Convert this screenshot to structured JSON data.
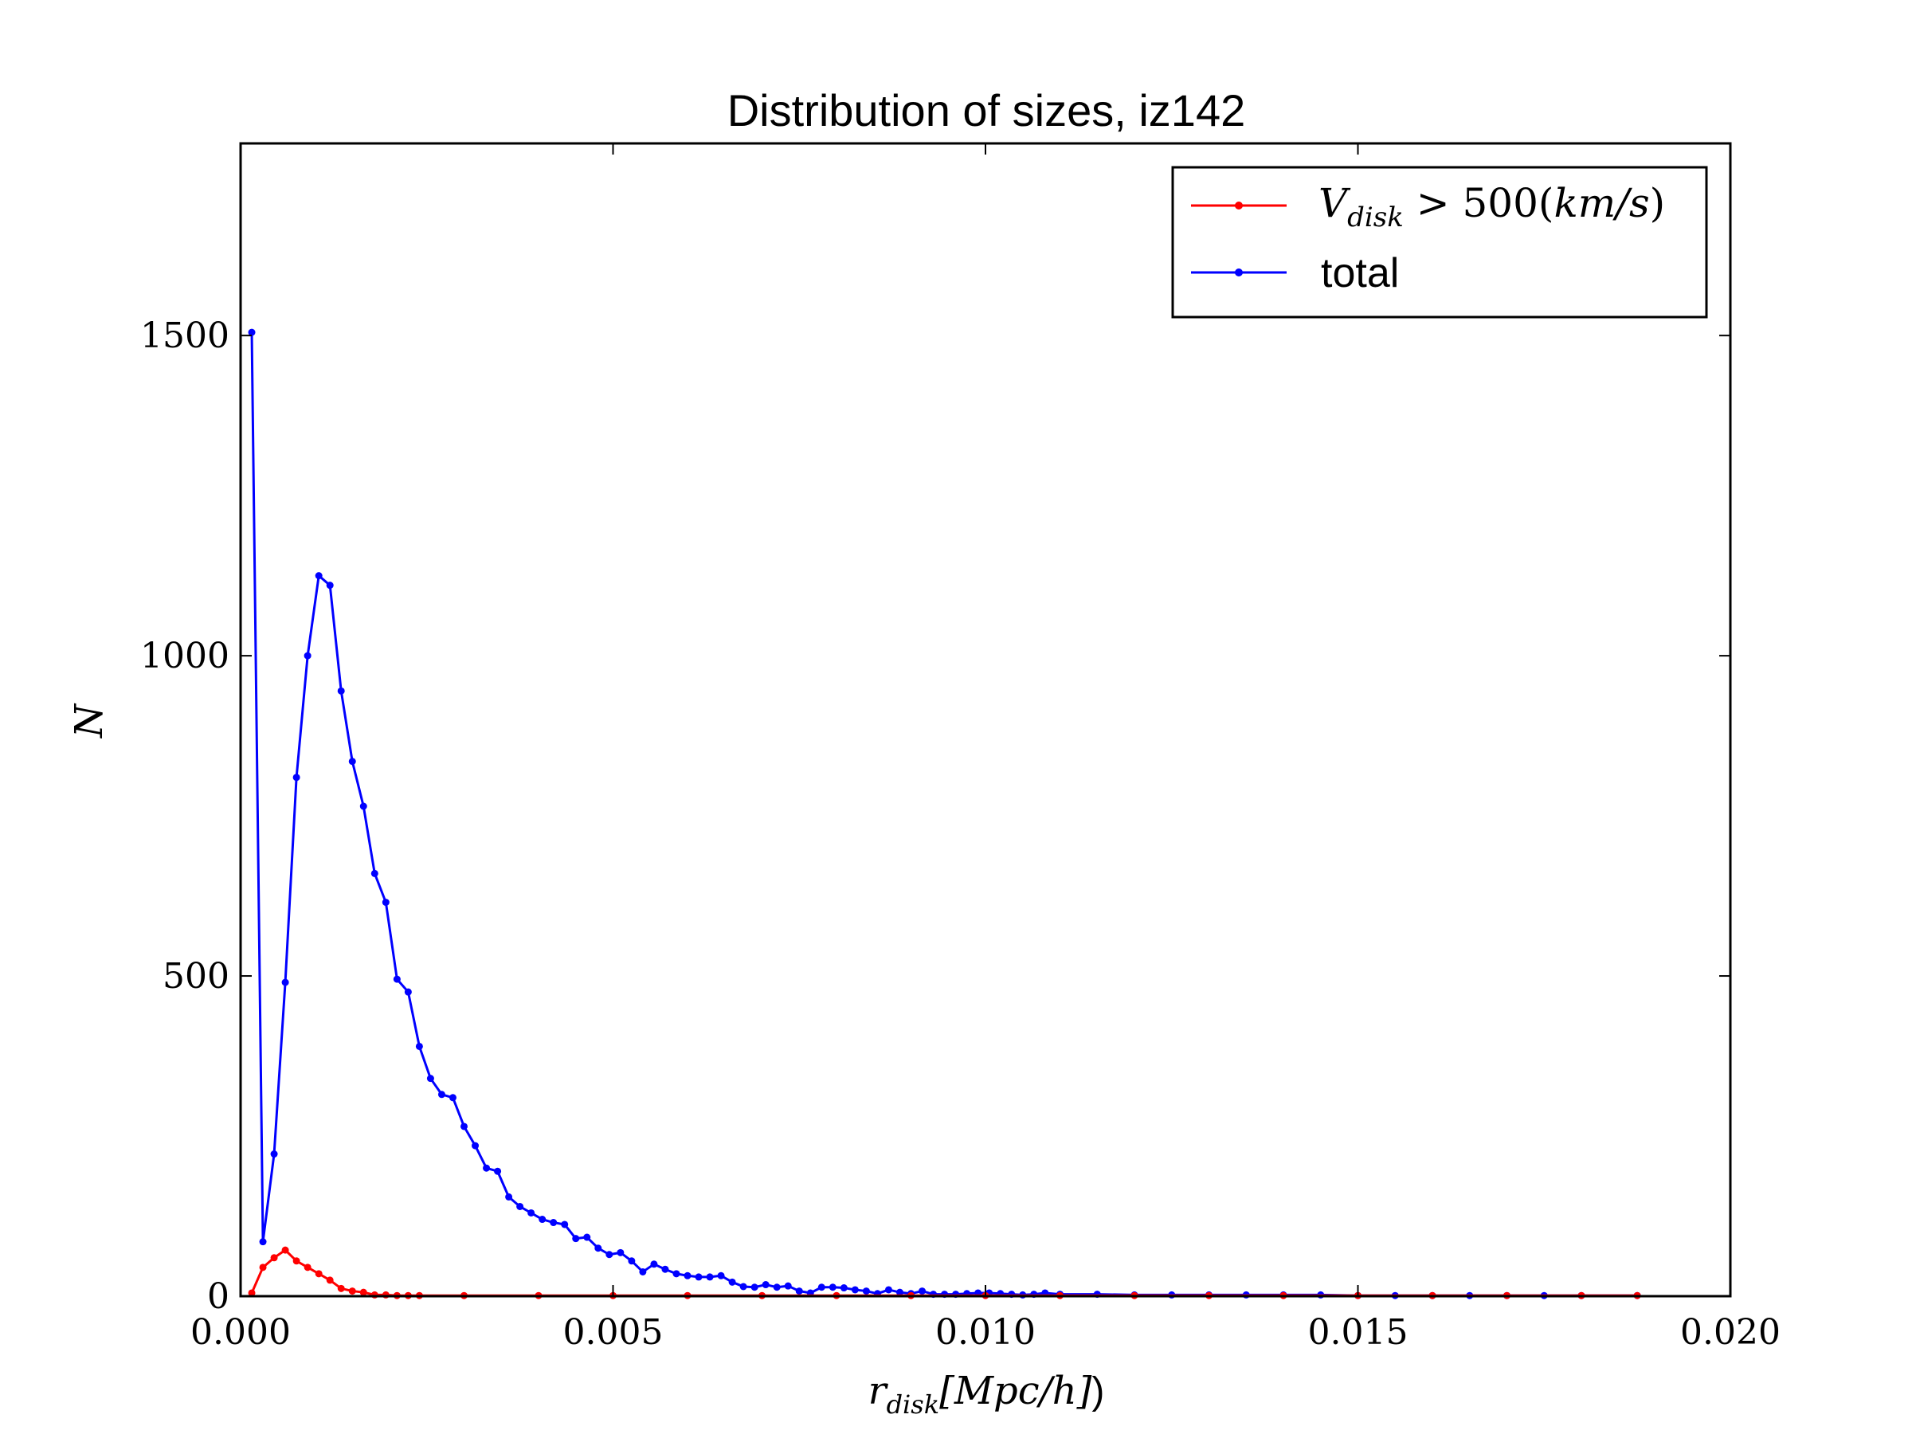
{
  "chart_data": {
    "type": "line",
    "title": "Distribution of sizes, iz142",
    "xlabel": "r_disk[Mpc/h])",
    "ylabel": "N",
    "xlim": [
      0.0,
      0.02
    ],
    "ylim": [
      0,
      1800
    ],
    "xticks": [
      0.0,
      0.005,
      0.01,
      0.015,
      0.02
    ],
    "xtick_labels": [
      "0.000",
      "0.005",
      "0.010",
      "0.015",
      "0.020"
    ],
    "yticks": [
      0,
      500,
      1000,
      1500
    ],
    "ytick_labels": [
      "0",
      "500",
      "1000",
      "1500"
    ],
    "grid": false,
    "legend_position": "top-right",
    "series": [
      {
        "name": "V_disk > 500(km/s)",
        "color": "#ff0000",
        "marker": "dot",
        "x": [
          0.00015,
          0.0003,
          0.00045,
          0.0006,
          0.00075,
          0.0009,
          0.00105,
          0.0012,
          0.00135,
          0.0015,
          0.00165,
          0.0018,
          0.00195,
          0.0021,
          0.00225,
          0.0024,
          0.003,
          0.004,
          0.005,
          0.006,
          0.007,
          0.008,
          0.009,
          0.01,
          0.011,
          0.012,
          0.013,
          0.014,
          0.015,
          0.016,
          0.017,
          0.018,
          0.01875
        ],
        "y": [
          5,
          45,
          60,
          72,
          55,
          45,
          35,
          25,
          12,
          8,
          6,
          2,
          2,
          1,
          1,
          1,
          1,
          1,
          1,
          1,
          1,
          1,
          1,
          1,
          1,
          1,
          1,
          1,
          1,
          1,
          1,
          1,
          1
        ]
      },
      {
        "name": "total",
        "color": "#0000ff",
        "marker": "dot",
        "x": [
          0.00015,
          0.0003,
          0.00045,
          0.0006,
          0.00075,
          0.0009,
          0.00105,
          0.0012,
          0.00135,
          0.0015,
          0.00165,
          0.0018,
          0.00195,
          0.0021,
          0.00225,
          0.0024,
          0.00255,
          0.0027,
          0.00285,
          0.003,
          0.00315,
          0.0033,
          0.00345,
          0.0036,
          0.00375,
          0.0039,
          0.00405,
          0.0042,
          0.00435,
          0.0045,
          0.00465,
          0.0048,
          0.00495,
          0.0051,
          0.00525,
          0.0054,
          0.00555,
          0.0057,
          0.00585,
          0.006,
          0.00615,
          0.0063,
          0.00645,
          0.0066,
          0.00675,
          0.0069,
          0.00705,
          0.0072,
          0.00735,
          0.0075,
          0.00765,
          0.0078,
          0.00795,
          0.0081,
          0.00825,
          0.0084,
          0.00855,
          0.0087,
          0.00885,
          0.009,
          0.00915,
          0.0093,
          0.00945,
          0.0096,
          0.00975,
          0.0099,
          0.01005,
          0.0102,
          0.01035,
          0.0105,
          0.01065,
          0.0108,
          0.011,
          0.0115,
          0.012,
          0.0125,
          0.013,
          0.0135,
          0.014,
          0.0145,
          0.015,
          0.0155,
          0.016,
          0.0165,
          0.017,
          0.0175,
          0.018,
          0.01875
        ],
        "y": [
          1505,
          85,
          222,
          490,
          810,
          1000,
          1125,
          1110,
          945,
          835,
          765,
          660,
          615,
          495,
          475,
          390,
          340,
          315,
          310,
          265,
          235,
          200,
          195,
          155,
          140,
          130,
          120,
          115,
          112,
          90,
          92,
          75,
          65,
          68,
          55,
          38,
          50,
          42,
          35,
          32,
          30,
          30,
          32,
          22,
          15,
          14,
          18,
          14,
          16,
          8,
          5,
          14,
          14,
          13,
          10,
          8,
          4,
          10,
          6,
          4,
          8,
          3,
          3,
          3,
          4,
          5,
          5,
          4,
          3,
          2,
          3,
          5,
          3,
          3,
          2,
          2,
          2,
          2,
          2,
          2,
          1,
          1,
          1,
          1,
          1,
          1,
          1,
          1
        ]
      }
    ]
  }
}
